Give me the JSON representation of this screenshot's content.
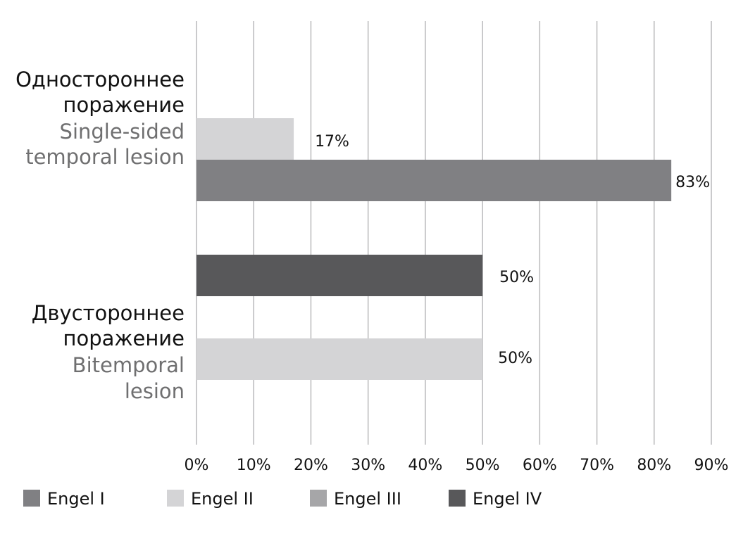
{
  "chart_data": {
    "type": "bar",
    "orientation": "horizontal",
    "categories": [
      {
        "label_ru": [
          "Одностороннее",
          "поражение"
        ],
        "label_en": [
          "Single-sided",
          "temporal lesion"
        ]
      },
      {
        "label_ru": [
          "Двустороннее",
          "поражение"
        ],
        "label_en": [
          "Bitemporal",
          "lesion"
        ]
      }
    ],
    "series": [
      {
        "name": "Engel I",
        "color": "#808083",
        "values": [
          83,
          null
        ]
      },
      {
        "name": "Engel II",
        "color": "#d4d4d6",
        "values": [
          17,
          50
        ]
      },
      {
        "name": "Engel III",
        "color": "#a6a6a8",
        "values": [
          null,
          null
        ]
      },
      {
        "name": "Engel IV",
        "color": "#58585a",
        "values": [
          null,
          50
        ]
      }
    ],
    "bars": [
      {
        "category": 0,
        "series": "Engel II",
        "value": 17,
        "label": "17%"
      },
      {
        "category": 0,
        "series": "Engel I",
        "value": 83,
        "label": "83%"
      },
      {
        "category": 1,
        "series": "Engel IV",
        "value": 50,
        "label": "50%"
      },
      {
        "category": 1,
        "series": "Engel II",
        "value": 50,
        "label": "50%"
      }
    ],
    "xlim": [
      0,
      90
    ],
    "xticks": [
      "0%",
      "10%",
      "20%",
      "30%",
      "40%",
      "50%",
      "60%",
      "70%",
      "80%",
      "90%"
    ],
    "grid": true,
    "legend_position": "bottom"
  }
}
